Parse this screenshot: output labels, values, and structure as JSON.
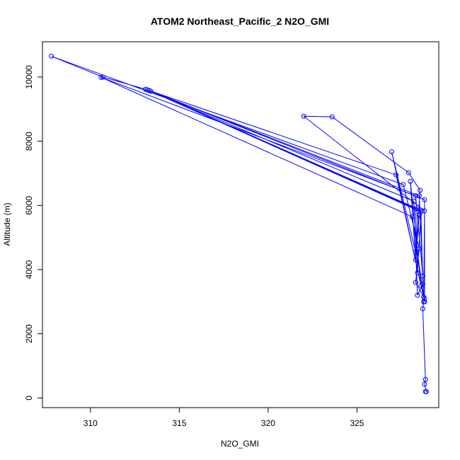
{
  "chart_data": {
    "type": "line",
    "title": "ATOM2 Northeast_Pacific_2 N2O_GMI",
    "xlabel": "N2O_GMI",
    "ylabel": "Altitude (m)",
    "xlim": [
      307.3,
      329.6
    ],
    "ylim": [
      -300,
      11100
    ],
    "xticks": [
      310,
      315,
      320,
      325
    ],
    "yticks": [
      0,
      2000,
      4000,
      6000,
      8000,
      10000
    ],
    "grid": false,
    "color": "#0000ff",
    "series": [
      {
        "points": [
          [
            328.85,
            200
          ],
          [
            328.9,
            200
          ],
          [
            328.8,
            430
          ],
          [
            328.85,
            580
          ],
          [
            328.7,
            2780
          ],
          [
            328.75,
            3000
          ],
          [
            328.8,
            3100
          ],
          [
            328.3,
            3600
          ],
          [
            328.5,
            4650
          ],
          [
            327.6,
            6650
          ],
          [
            307.8,
            10650
          ],
          [
            310.7,
            10000
          ],
          [
            313.1,
            9620
          ],
          [
            328.2,
            6130
          ],
          [
            328.4,
            3200
          ],
          [
            328.7,
            3550
          ],
          [
            328.6,
            5800
          ],
          [
            313.3,
            9580
          ],
          [
            328.3,
            5900
          ],
          [
            328.4,
            3900
          ],
          [
            328.6,
            5850
          ],
          [
            313.4,
            9560
          ],
          [
            328.5,
            6300
          ],
          [
            328.7,
            3800
          ],
          [
            328.3,
            6300
          ],
          [
            310.6,
            9990
          ],
          [
            328.1,
            5650
          ],
          [
            328.8,
            3000
          ],
          [
            328.8,
            6180
          ],
          [
            313.2,
            9600
          ],
          [
            327.2,
            6950
          ],
          [
            328.75,
            3150
          ],
          [
            328.8,
            5830
          ],
          [
            322.0,
            8780
          ],
          [
            323.6,
            8760
          ],
          [
            327.9,
            7020
          ],
          [
            328.55,
            6470
          ],
          [
            328.3,
            4550
          ],
          [
            326.95,
            7670
          ],
          [
            328.6,
            3500
          ],
          [
            328.0,
            6750
          ],
          [
            328.3,
            4300
          ],
          [
            328.5,
            5700
          ]
        ]
      }
    ]
  }
}
